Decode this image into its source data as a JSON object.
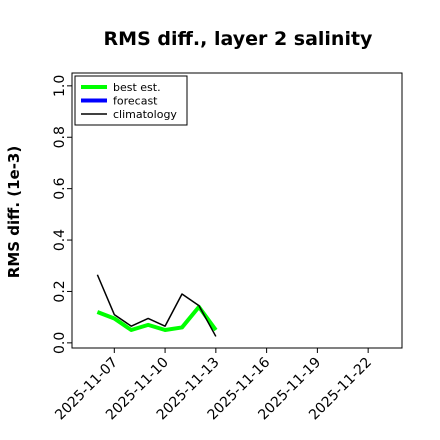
{
  "chart_data": {
    "type": "line",
    "title": "RMS diff., layer 2 salinity",
    "ylabel": "RMS diff. (1e-3)",
    "xlabel": "",
    "ylim": [
      -0.02,
      1.05
    ],
    "yticks": [
      0.0,
      0.2,
      0.4,
      0.6,
      0.8,
      1.0
    ],
    "ytick_labels": [
      "0.0",
      "0.2",
      "0.4",
      "0.6",
      "0.8",
      "1.0"
    ],
    "xlim": [
      "2025-11-04T12:00",
      "2025-11-24"
    ],
    "xticks": [
      "2025-11-07",
      "2025-11-10",
      "2025-11-13",
      "2025-11-16",
      "2025-11-19",
      "2025-11-22"
    ],
    "highlight_xtick": "2025-11-13",
    "highlight_color": "#228B22",
    "legend_position": "top-left",
    "series": [
      {
        "name": "best est.",
        "color": "#00ff00",
        "x": [
          "2025-11-06",
          "2025-11-07",
          "2025-11-08",
          "2025-11-09",
          "2025-11-10",
          "2025-11-11",
          "2025-11-12",
          "2025-11-13"
        ],
        "values": [
          0.12,
          0.095,
          0.05,
          0.07,
          0.05,
          0.06,
          0.14,
          0.05
        ]
      },
      {
        "name": "forecast",
        "color": "#0000ff",
        "x": [],
        "values": []
      },
      {
        "name": "climatology",
        "color": "#000000",
        "x": [
          "2025-11-06",
          "2025-11-07",
          "2025-11-08",
          "2025-11-09",
          "2025-11-10",
          "2025-11-11",
          "2025-11-12",
          "2025-11-13"
        ],
        "values": [
          0.265,
          0.11,
          0.065,
          0.095,
          0.065,
          0.19,
          0.145,
          0.025
        ]
      }
    ]
  }
}
